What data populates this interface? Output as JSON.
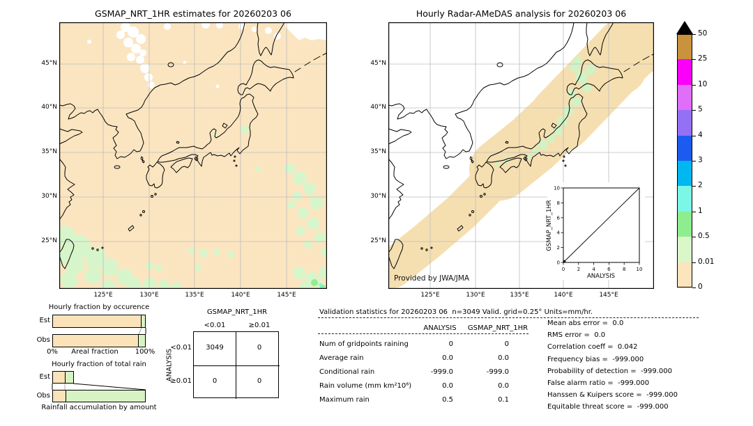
{
  "colors": {
    "map_peach": "#fbe5c0",
    "map_green": "#d7f5cb",
    "band_peach": "#f5dfb1",
    "band_green": "#d0f2c4",
    "bar_peach": "#fae3b9",
    "bar_green": "#d7f3c4",
    "grid_gray": "#bcbcbc",
    "overflow_black": "#000000"
  },
  "left_map": {
    "title": "GSMAP_NRT_1HR estimates for 20260203 06",
    "lat_ticks": [
      "45°N",
      "40°N",
      "35°N",
      "30°N",
      "25°N"
    ],
    "lon_ticks": [
      "125°E",
      "130°E",
      "135°E",
      "140°E",
      "145°E"
    ]
  },
  "right_map": {
    "title": "Hourly Radar-AMeDAS analysis for 20260203 06",
    "provided_by": "Provided by JWA/JMA",
    "lat_ticks": [
      "45°N",
      "40°N",
      "35°N",
      "30°N",
      "25°N"
    ],
    "lon_ticks": [
      "125°E",
      "130°E",
      "135°E",
      "140°E",
      "145°E"
    ],
    "inset": {
      "xlabel": "ANALYSIS",
      "ylabel": "GSMAP_NRT_1HR",
      "x_ticks": [
        "0",
        "2",
        "4",
        "6",
        "8",
        "10"
      ],
      "y_ticks": [
        "0",
        "2",
        "4",
        "6",
        "8",
        "10"
      ]
    }
  },
  "colorbar": {
    "tick_labels": [
      "50",
      "25",
      "10",
      "5",
      "4",
      "3",
      "2",
      "1",
      "0.5",
      "0.01",
      "0"
    ],
    "segment_colors": [
      "#c9923d",
      "#fa00fa",
      "#df6ef8",
      "#9470f5",
      "#1c5bef",
      "#00b7ef",
      "#7cf6e7",
      "#8eed8e",
      "#d9f7c9",
      "#fce4bc"
    ]
  },
  "occurrence_chart": {
    "title": "Hourly fraction by occurence",
    "row_labels": [
      "Est",
      "Obs"
    ],
    "x_min_label": "0%",
    "x_axis_label": "Areal fraction",
    "x_max_label": "100%",
    "bars": {
      "est": [
        0.955,
        0.045
      ],
      "obs": [
        0.925,
        0.075
      ]
    }
  },
  "total_rain_chart": {
    "title": "Hourly fraction of total rain",
    "row_labels": [
      "Est",
      "Obs"
    ],
    "x_axis_label": "Rainfall accumulation by amount",
    "bars": {
      "est": [
        0.135,
        0.09
      ],
      "obs": [
        0.135,
        0.865
      ]
    }
  },
  "contingency": {
    "col_axis_label": "GSMAP_NRT_1HR",
    "row_axis_label": "ANALYSIS",
    "col_labels": [
      "<0.01",
      "≥0.01"
    ],
    "row_labels": [
      "<0.01",
      "≥0.01"
    ],
    "cells": [
      [
        "3049",
        "0"
      ],
      [
        "0",
        "0"
      ]
    ]
  },
  "validation": {
    "title": "Validation statistics for 20260203 06  n=3049 Valid. grid=0.25° Units=mm/hr.",
    "col_headers": [
      "ANALYSIS",
      "GSMAP_NRT_1HR"
    ],
    "rows": [
      {
        "label": "Num of gridpoints raining",
        "analysis": "0",
        "gsmap": "0"
      },
      {
        "label": "Average rain",
        "analysis": "0.0",
        "gsmap": "0.0"
      },
      {
        "label": "Conditional rain",
        "analysis": "-999.0",
        "gsmap": "-999.0"
      },
      {
        "label": "Rain volume (mm km²10⁶)",
        "analysis": "0.0",
        "gsmap": "0.0"
      },
      {
        "label": "Maximum rain",
        "analysis": "0.5",
        "gsmap": "0.1"
      }
    ]
  },
  "metrics": [
    {
      "label": "Mean abs error",
      "value": "0.0"
    },
    {
      "label": "RMS error",
      "value": "0.0"
    },
    {
      "label": "Correlation coeff",
      "value": "0.042"
    },
    {
      "label": "Frequency bias",
      "value": "-999.000"
    },
    {
      "label": "Probability of detection",
      "value": "-999.000"
    },
    {
      "label": "False alarm ratio",
      "value": "-999.000"
    },
    {
      "label": "Hanssen & Kuipers score",
      "value": "-999.000"
    },
    {
      "label": "Equitable threat score",
      "value": "-999.000"
    }
  ],
  "chart_data": [
    {
      "type": "heatmap",
      "title": "GSMAP_NRT_1HR estimates for 20260203 06",
      "x_ticks": [
        "125°E",
        "130°E",
        "135°E",
        "140°E",
        "145°E"
      ],
      "y_ticks": [
        "45°N",
        "40°N",
        "35°N",
        "30°N",
        "25°N"
      ],
      "units": "mm/hr",
      "color_levels": [
        0,
        0.01,
        0.5,
        1,
        2,
        3,
        4,
        5,
        10,
        25,
        50
      ],
      "summary": "nearly entire domain in the 0–0.01 mm/hr class (peach); scattered 0.01–0.5 mm/hr patches (pale green) over ocean south and east of Japan; small white no-data patches in the northwest and top-right corner"
    },
    {
      "type": "heatmap",
      "title": "Hourly Radar-AMeDAS analysis for 20260203 06",
      "x_ticks": [
        "125°E",
        "130°E",
        "135°E",
        "140°E",
        "145°E"
      ],
      "y_ticks": [
        "45°N",
        "40°N",
        "35°N",
        "30°N",
        "25°N"
      ],
      "units": "mm/hr",
      "color_levels": [
        0,
        0.01,
        0.5,
        1,
        2,
        3,
        4,
        5,
        10,
        25,
        50
      ],
      "summary": "radar coverage band along the Japanese archipelago in the 0–0.01 mm/hr class (peach) with 0.01–0.5 mm/hr patches (pale green) over Hokkaido and Honshu; white elsewhere = outside radar coverage"
    },
    {
      "type": "scatter",
      "title": "ANALYSIS vs GSMAP_NRT_1HR inset",
      "xlabel": "ANALYSIS",
      "ylabel": "GSMAP_NRT_1HR",
      "xlim": [
        0,
        10
      ],
      "ylim": [
        0,
        10
      ],
      "x_ticks": [
        0,
        2,
        4,
        6,
        8,
        10
      ],
      "y_ticks": [
        0,
        2,
        4,
        6,
        8,
        10
      ],
      "points": [
        [
          0.5,
          0.1
        ]
      ],
      "diagonal_line": true
    },
    {
      "type": "bar",
      "title": "Hourly fraction by occurence",
      "orientation": "horizontal",
      "categories": [
        "Est",
        "Obs"
      ],
      "series": [
        {
          "name": "0–0.01 mm/hr (peach)",
          "values": [
            95.5,
            92.5
          ]
        },
        {
          "name": "≥0.01 mm/hr (green)",
          "values": [
            4.5,
            7.5
          ]
        }
      ],
      "xlabel": "Areal fraction",
      "xlim": [
        0,
        100
      ]
    },
    {
      "type": "bar",
      "title": "Hourly fraction of total rain",
      "orientation": "horizontal",
      "categories": [
        "Est",
        "Obs"
      ],
      "series": [
        {
          "name": "peach segment (axis fraction)",
          "values": [
            0.135,
            0.135
          ]
        },
        {
          "name": "green segment (axis fraction)",
          "values": [
            0.09,
            0.865
          ]
        }
      ],
      "xlabel": "Rainfall accumulation by amount"
    },
    {
      "type": "table",
      "title": "Contingency table",
      "row_axis": "ANALYSIS",
      "col_axis": "GSMAP_NRT_1HR",
      "columns": [
        "<0.01",
        "≥0.01"
      ],
      "rows": [
        "<0.01",
        "≥0.01"
      ],
      "cells": [
        [
          3049,
          0
        ],
        [
          0,
          0
        ]
      ]
    },
    {
      "type": "table",
      "title": "Validation statistics for 20260203 06  n=3049 Valid. grid=0.25° Units=mm/hr.",
      "columns": [
        "",
        "ANALYSIS",
        "GSMAP_NRT_1HR"
      ],
      "cells": [
        [
          "Num of gridpoints raining",
          0,
          0
        ],
        [
          "Average rain",
          0.0,
          0.0
        ],
        [
          "Conditional rain",
          -999.0,
          -999.0
        ],
        [
          "Rain volume (mm km²10⁶)",
          0.0,
          0.0
        ],
        [
          "Maximum rain",
          0.5,
          0.1
        ]
      ]
    },
    {
      "type": "table",
      "title": "Skill scores",
      "cells": [
        [
          "Mean abs error",
          0.0
        ],
        [
          "RMS error",
          0.0
        ],
        [
          "Correlation coeff",
          0.042
        ],
        [
          "Frequency bias",
          -999.0
        ],
        [
          "Probability of detection",
          -999.0
        ],
        [
          "False alarm ratio",
          -999.0
        ],
        [
          "Hanssen & Kuipers score",
          -999.0
        ],
        [
          "Equitable threat score",
          -999.0
        ]
      ]
    }
  ]
}
